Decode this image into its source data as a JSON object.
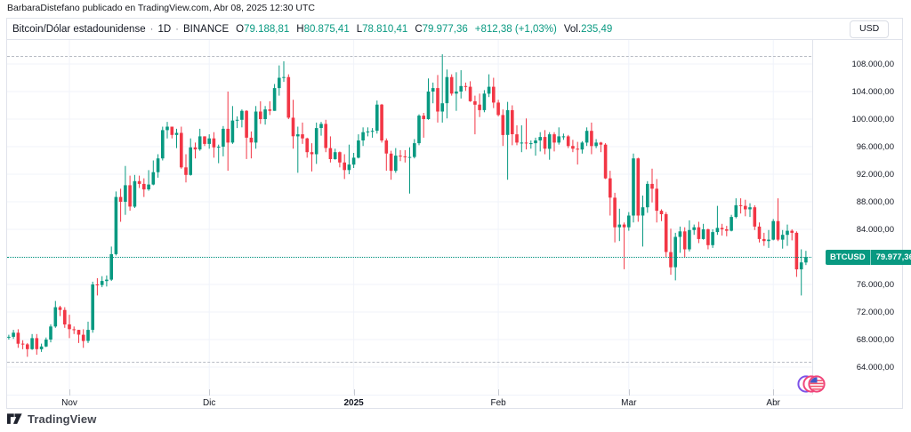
{
  "attribution": {
    "text": "BarbaraDistefano publicado en TradingView.com, Abr 08, 2025 12:30 UTC"
  },
  "header": {
    "symbol_title": "Bitcoin/Dólar estadounidense",
    "separator": "·",
    "interval": "1D",
    "exchange": "BINANCE",
    "ohlc": {
      "o_label": "O",
      "o": "79.188,81",
      "h_label": "H",
      "h": "80.875,41",
      "l_label": "L",
      "l": "78.810,41",
      "c_label": "C",
      "c": "79.977,36",
      "change": "+812,38 (+1,03%)",
      "vol_label": "Vol.",
      "vol": "235,49"
    },
    "currency_button": "USD"
  },
  "price_badge": {
    "symbol": "BTCUSD",
    "price": "79.977,36"
  },
  "footer": {
    "brand": "TradingView"
  },
  "colors": {
    "up": "#089981",
    "down": "#f23645",
    "grid": "#f0f3fa",
    "border": "#e0e3eb",
    "text": "#131722",
    "dashed_level": "#b8bcc4",
    "badge": "#089981"
  },
  "chart_data": {
    "type": "candlestick",
    "title": "Bitcoin/Dólar estadounidense",
    "symbol": "BTCUSD",
    "exchange": "BINANCE",
    "interval": "1D",
    "price_unit": "thousand USD",
    "start_date": "2024-10-18",
    "end_date": "2025-04-08",
    "grid": true,
    "y_axis": {
      "min": 62,
      "max": 111.5,
      "tick_step": 4,
      "grid_ticks": [
        64,
        68,
        72,
        76,
        80,
        84,
        88,
        92,
        96,
        100,
        104,
        108
      ],
      "tick_labels": [
        {
          "v": 108,
          "label": "108.000,00"
        },
        {
          "v": 104,
          "label": "104.000,00"
        },
        {
          "v": 100,
          "label": "100.000,00"
        },
        {
          "v": 96,
          "label": "96.000,00"
        },
        {
          "v": 92,
          "label": "92.000,00"
        },
        {
          "v": 88,
          "label": "88.000,00"
        },
        {
          "v": 84,
          "label": "84.000,00"
        },
        {
          "v": 76,
          "label": "76.000,00"
        },
        {
          "v": 72,
          "label": "72.000,00"
        },
        {
          "v": 68,
          "label": "68.000,00"
        },
        {
          "v": 64,
          "label": "64.000,00"
        }
      ]
    },
    "time_axis": {
      "labels": [
        {
          "text": "Nov",
          "i": 14,
          "bold": false
        },
        {
          "text": "Dic",
          "i": 44,
          "bold": false
        },
        {
          "text": "2025",
          "i": 75,
          "bold": true
        },
        {
          "text": "Feb",
          "i": 106,
          "bold": false
        },
        {
          "text": "Mar",
          "i": 134,
          "bold": false
        },
        {
          "text": "Abr",
          "i": 165,
          "bold": false
        }
      ]
    },
    "levels": {
      "upper_dashed": 109.2,
      "lower_dashed": 64.75,
      "last_close": 79.977
    },
    "candles_note": "daily OHLC tuples [open,high,low,close] in thousand USD, 2024-10-18 .. 2025-04-08",
    "candles": [
      [
        67.4,
        68.9,
        67.0,
        68.4
      ],
      [
        68.4,
        68.7,
        68.0,
        68.4
      ],
      [
        68.4,
        69.4,
        68.1,
        69.0
      ],
      [
        69.0,
        69.5,
        66.8,
        67.4
      ],
      [
        67.4,
        67.9,
        66.6,
        67.3
      ],
      [
        67.3,
        67.5,
        65.5,
        66.6
      ],
      [
        66.6,
        68.8,
        66.5,
        68.2
      ],
      [
        68.2,
        68.8,
        65.8,
        66.6
      ],
      [
        66.6,
        67.4,
        66.2,
        67.0
      ],
      [
        67.0,
        68.3,
        66.9,
        68.0
      ],
      [
        68.0,
        70.2,
        67.6,
        69.9
      ],
      [
        69.9,
        73.6,
        69.7,
        72.7
      ],
      [
        72.7,
        72.9,
        71.4,
        72.3
      ],
      [
        72.3,
        72.7,
        69.7,
        70.2
      ],
      [
        70.2,
        71.6,
        68.2,
        69.5
      ],
      [
        69.5,
        69.9,
        68.8,
        69.4
      ],
      [
        69.4,
        69.4,
        67.5,
        68.7
      ],
      [
        68.7,
        69.5,
        66.8,
        67.8
      ],
      [
        67.8,
        70.6,
        67.5,
        69.4
      ],
      [
        69.4,
        76.4,
        69.0,
        76.0
      ],
      [
        76.0,
        76.9,
        74.4,
        75.9
      ],
      [
        75.9,
        77.2,
        75.6,
        76.5
      ],
      [
        76.5,
        77.3,
        75.7,
        76.7
      ],
      [
        76.7,
        81.5,
        76.5,
        80.4
      ],
      [
        80.4,
        89.5,
        80.2,
        88.7
      ],
      [
        88.7,
        89.9,
        85.1,
        88.0
      ],
      [
        88.0,
        93.2,
        86.1,
        90.4
      ],
      [
        90.4,
        91.8,
        86.7,
        87.3
      ],
      [
        87.3,
        91.9,
        87.1,
        91.0
      ],
      [
        91.0,
        91.8,
        90.0,
        90.6
      ],
      [
        90.6,
        91.4,
        88.7,
        89.8
      ],
      [
        89.8,
        92.6,
        89.6,
        90.5
      ],
      [
        90.5,
        94.0,
        90.4,
        92.3
      ],
      [
        92.3,
        94.9,
        91.5,
        94.3
      ],
      [
        94.3,
        98.9,
        94.0,
        98.4
      ],
      [
        98.4,
        99.6,
        97.2,
        98.9
      ],
      [
        98.9,
        98.9,
        97.2,
        97.7
      ],
      [
        97.7,
        98.6,
        95.8,
        98.0
      ],
      [
        98.0,
        98.9,
        92.8,
        93.0
      ],
      [
        93.0,
        94.9,
        90.8,
        91.9
      ],
      [
        91.9,
        97.2,
        91.8,
        95.9
      ],
      [
        95.9,
        96.6,
        94.3,
        95.6
      ],
      [
        95.6,
        98.6,
        95.4,
        97.5
      ],
      [
        97.5,
        97.5,
        96.1,
        96.4
      ],
      [
        96.4,
        97.8,
        95.7,
        97.2
      ],
      [
        97.2,
        98.1,
        94.4,
        95.9
      ],
      [
        95.9,
        96.3,
        93.6,
        96.0
      ],
      [
        96.0,
        99.0,
        94.6,
        98.6
      ],
      [
        98.6,
        104.0,
        92.5,
        96.6
      ],
      [
        96.6,
        101.9,
        96.4,
        99.8
      ],
      [
        99.8,
        100.4,
        98.7,
        99.9
      ],
      [
        99.9,
        101.4,
        98.8,
        101.2
      ],
      [
        101.2,
        101.3,
        94.2,
        97.3
      ],
      [
        97.3,
        98.2,
        94.3,
        96.6
      ],
      [
        96.6,
        101.9,
        95.7,
        101.1
      ],
      [
        101.1,
        102.6,
        99.3,
        100.0
      ],
      [
        100.0,
        101.9,
        99.2,
        101.4
      ],
      [
        101.4,
        102.6,
        100.6,
        101.2
      ],
      [
        101.2,
        105.1,
        101.2,
        104.5
      ],
      [
        104.5,
        107.8,
        103.4,
        106.0
      ],
      [
        106.0,
        108.4,
        105.4,
        106.1
      ],
      [
        106.1,
        106.5,
        100.0,
        100.2
      ],
      [
        100.2,
        102.8,
        95.7,
        97.5
      ],
      [
        97.5,
        98.9,
        92.2,
        97.8
      ],
      [
        97.8,
        99.5,
        96.4,
        97.2
      ],
      [
        97.2,
        97.3,
        94.4,
        95.2
      ],
      [
        95.2,
        96.5,
        92.4,
        94.9
      ],
      [
        94.9,
        99.5,
        93.5,
        98.7
      ],
      [
        98.7,
        99.6,
        97.6,
        99.3
      ],
      [
        99.3,
        99.9,
        95.2,
        95.8
      ],
      [
        95.8,
        97.5,
        93.7,
        94.2
      ],
      [
        94.2,
        95.7,
        94.1,
        95.2
      ],
      [
        95.2,
        95.3,
        93.0,
        93.7
      ],
      [
        93.7,
        94.9,
        91.3,
        92.6
      ],
      [
        92.6,
        96.3,
        92.0,
        93.4
      ],
      [
        93.4,
        95.1,
        92.9,
        94.4
      ],
      [
        94.4,
        97.8,
        94.3,
        96.9
      ],
      [
        96.9,
        98.8,
        96.1,
        98.1
      ],
      [
        98.1,
        98.8,
        97.5,
        98.2
      ],
      [
        98.2,
        98.7,
        97.3,
        98.3
      ],
      [
        98.3,
        102.7,
        97.9,
        102.1
      ],
      [
        102.1,
        102.2,
        96.6,
        96.9
      ],
      [
        96.9,
        97.2,
        92.5,
        95.0
      ],
      [
        95.0,
        95.4,
        91.2,
        92.5
      ],
      [
        92.5,
        95.8,
        92.2,
        94.7
      ],
      [
        94.7,
        95.5,
        93.9,
        94.6
      ],
      [
        94.6,
        95.5,
        93.7,
        94.5
      ],
      [
        94.5,
        95.9,
        89.2,
        94.5
      ],
      [
        94.5,
        97.1,
        94.3,
        96.5
      ],
      [
        96.5,
        100.7,
        96.2,
        100.5
      ],
      [
        100.5,
        100.9,
        97.3,
        100.0
      ],
      [
        100.0,
        105.9,
        99.9,
        104.0
      ],
      [
        104.0,
        105.3,
        102.3,
        104.5
      ],
      [
        104.5,
        106.4,
        99.5,
        101.1
      ],
      [
        101.1,
        109.4,
        99.5,
        102.3
      ],
      [
        102.3,
        107.2,
        100.1,
        106.1
      ],
      [
        106.1,
        106.5,
        103.4,
        103.7
      ],
      [
        103.7,
        106.8,
        101.2,
        104.0
      ],
      [
        104.0,
        107.1,
        103.0,
        104.8
      ],
      [
        104.8,
        105.3,
        104.1,
        104.7
      ],
      [
        104.7,
        105.5,
        102.5,
        102.6
      ],
      [
        102.6,
        103.4,
        97.8,
        102.1
      ],
      [
        102.1,
        103.7,
        100.3,
        101.3
      ],
      [
        101.3,
        104.2,
        101.0,
        103.7
      ],
      [
        103.7,
        106.5,
        103.2,
        104.7
      ],
      [
        104.7,
        106.0,
        101.6,
        102.4
      ],
      [
        102.4,
        102.8,
        100.4,
        100.6
      ],
      [
        100.6,
        101.4,
        96.1,
        97.7
      ],
      [
        97.7,
        102.5,
        91.2,
        101.3
      ],
      [
        101.3,
        102.0,
        96.2,
        97.8
      ],
      [
        97.8,
        99.1,
        96.2,
        96.6
      ],
      [
        96.6,
        99.1,
        95.2,
        96.6
      ],
      [
        96.6,
        100.1,
        95.6,
        96.5
      ],
      [
        96.5,
        96.9,
        95.7,
        96.5
      ],
      [
        96.5,
        97.3,
        94.7,
        96.9
      ],
      [
        96.9,
        98.1,
        95.3,
        97.4
      ],
      [
        97.4,
        98.4,
        94.9,
        95.7
      ],
      [
        95.7,
        98.1,
        94.1,
        97.8
      ],
      [
        97.8,
        98.1,
        95.3,
        96.6
      ],
      [
        96.6,
        98.8,
        96.3,
        97.5
      ],
      [
        97.5,
        97.9,
        97.0,
        97.5
      ],
      [
        97.5,
        97.7,
        95.8,
        96.1
      ],
      [
        96.1,
        97.0,
        95.2,
        95.7
      ],
      [
        95.7,
        96.7,
        93.4,
        95.6
      ],
      [
        95.6,
        96.8,
        95.0,
        96.6
      ],
      [
        96.6,
        98.8,
        96.1,
        98.3
      ],
      [
        98.3,
        99.5,
        94.9,
        96.1
      ],
      [
        96.1,
        97.1,
        95.8,
        96.6
      ],
      [
        96.6,
        96.7,
        95.2,
        96.3
      ],
      [
        96.3,
        96.5,
        91.3,
        91.4
      ],
      [
        91.4,
        92.5,
        86.0,
        88.6
      ],
      [
        88.6,
        89.3,
        82.1,
        84.3
      ],
      [
        84.3,
        87.0,
        82.3,
        84.7
      ],
      [
        84.7,
        85.0,
        78.2,
        84.3
      ],
      [
        84.3,
        86.5,
        83.8,
        86.0
      ],
      [
        86.0,
        95.0,
        85.0,
        94.3
      ],
      [
        94.3,
        94.4,
        85.1,
        86.0
      ],
      [
        86.0,
        88.9,
        81.5,
        87.2
      ],
      [
        87.2,
        91.0,
        86.4,
        90.6
      ],
      [
        90.6,
        92.8,
        87.9,
        89.9
      ],
      [
        89.9,
        91.3,
        85.0,
        86.7
      ],
      [
        86.7,
        86.9,
        85.2,
        86.2
      ],
      [
        86.2,
        86.5,
        80.0,
        80.7
      ],
      [
        80.7,
        84.1,
        77.4,
        78.5
      ],
      [
        78.5,
        83.5,
        76.6,
        82.9
      ],
      [
        82.9,
        84.4,
        80.6,
        83.7
      ],
      [
        83.7,
        84.3,
        79.9,
        81.1
      ],
      [
        81.1,
        85.3,
        80.8,
        83.9
      ],
      [
        83.9,
        84.7,
        83.2,
        84.3
      ],
      [
        84.3,
        85.1,
        82.0,
        82.6
      ],
      [
        82.6,
        84.8,
        82.5,
        84.0
      ],
      [
        84.0,
        84.1,
        81.1,
        81.7
      ],
      [
        81.7,
        84.0,
        81.3,
        83.6
      ],
      [
        83.6,
        87.4,
        83.2,
        84.2
      ],
      [
        84.2,
        84.8,
        83.1,
        84.0
      ],
      [
        84.0,
        84.5,
        83.0,
        83.8
      ],
      [
        83.8,
        86.1,
        83.7,
        85.8
      ],
      [
        85.8,
        88.5,
        85.6,
        87.5
      ],
      [
        87.5,
        88.5,
        86.3,
        87.4
      ],
      [
        87.4,
        88.3,
        85.9,
        86.9
      ],
      [
        86.9,
        87.8,
        85.8,
        87.2
      ],
      [
        87.2,
        87.5,
        83.9,
        84.4
      ],
      [
        84.4,
        85.0,
        82.1,
        82.6
      ],
      [
        82.6,
        83.5,
        81.6,
        82.3
      ],
      [
        82.3,
        83.9,
        81.3,
        82.5
      ],
      [
        82.5,
        85.5,
        82.4,
        85.2
      ],
      [
        85.2,
        88.5,
        82.3,
        82.5
      ],
      [
        82.5,
        83.9,
        81.2,
        83.2
      ],
      [
        83.2,
        84.7,
        81.6,
        83.8
      ],
      [
        83.8,
        84.0,
        82.4,
        83.5
      ],
      [
        83.5,
        83.7,
        77.1,
        78.2
      ],
      [
        78.2,
        81.1,
        74.4,
        79.2
      ],
      [
        79.19,
        80.88,
        78.81,
        79.98
      ]
    ]
  }
}
